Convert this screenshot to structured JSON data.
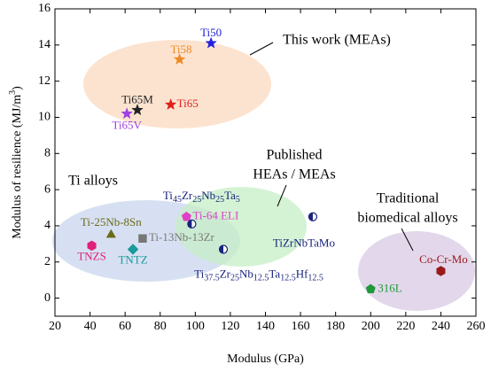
{
  "chart_data": {
    "type": "scatter",
    "x_label": "Modulus (GPa)",
    "y_label": [
      {
        "text": "Modulus of resilience (MJ/m"
      },
      {
        "text": "3",
        "shift": "super"
      },
      {
        "text": ")"
      }
    ],
    "xlim": [
      20,
      260
    ],
    "ylim": [
      -1,
      16
    ],
    "xticks": [
      20,
      40,
      60,
      80,
      100,
      120,
      140,
      160,
      180,
      200,
      220,
      240,
      260
    ],
    "yticks": [
      0,
      2,
      4,
      6,
      8,
      10,
      12,
      14,
      16
    ],
    "points": [
      {
        "label": [
          {
            "text": "Ti50"
          }
        ],
        "x": 109,
        "y": 14.1,
        "marker": "star",
        "color": "#2222dd"
      },
      {
        "label": [
          {
            "text": "Ti58"
          }
        ],
        "x": 91,
        "y": 13.2,
        "marker": "star",
        "color": "#ee8a22"
      },
      {
        "label": [
          {
            "text": "Ti65M"
          }
        ],
        "x": 67,
        "y": 10.4,
        "marker": "star",
        "color": "#222222"
      },
      {
        "label": [
          {
            "text": "Ti65"
          }
        ],
        "x": 86,
        "y": 10.7,
        "marker": "star",
        "color": "#e02020"
      },
      {
        "label": [
          {
            "text": "Ti65V"
          }
        ],
        "x": 61,
        "y": 10.2,
        "marker": "star",
        "color": "#a040e0"
      },
      {
        "label": [
          {
            "text": "Ti-25Nb-8Sn"
          }
        ],
        "x": 52,
        "y": 3.5,
        "marker": "triangle",
        "color": "#6b6b1a"
      },
      {
        "label": [
          {
            "text": "Ti-13Nb-13Zr"
          }
        ],
        "x": 70,
        "y": 3.3,
        "marker": "square",
        "color": "#777777"
      },
      {
        "label": [
          {
            "text": "TNZS"
          }
        ],
        "x": 41,
        "y": 2.9,
        "marker": "hexagon",
        "color": "#e0207a"
      },
      {
        "label": [
          {
            "text": "TNTZ"
          }
        ],
        "x": 64.5,
        "y": 2.7,
        "marker": "diamond",
        "color": "#1a9a9a"
      },
      {
        "label": [
          {
            "text": "Ti-64 ELI"
          }
        ],
        "x": 95,
        "y": 4.5,
        "marker": "pentagon",
        "color": "#e040c8"
      },
      {
        "label": [
          {
            "text": "Ti"
          },
          {
            "text": "45",
            "shift": "sub"
          },
          {
            "text": "Zr"
          },
          {
            "text": "25",
            "shift": "sub"
          },
          {
            "text": "Nb"
          },
          {
            "text": "25",
            "shift": "sub"
          },
          {
            "text": "Ta"
          },
          {
            "text": "5",
            "shift": "sub"
          }
        ],
        "x": 98,
        "y": 4.1,
        "marker": "half-circle",
        "color": "#1a237e"
      },
      {
        "label": [
          {
            "text": "TiZrNbTaMo"
          }
        ],
        "x": 167,
        "y": 4.5,
        "marker": "half-circle",
        "color": "#1a237e"
      },
      {
        "label": [
          {
            "text": "Ti"
          },
          {
            "text": "37.5",
            "shift": "sub"
          },
          {
            "text": "Zr"
          },
          {
            "text": "25",
            "shift": "sub"
          },
          {
            "text": "Nb"
          },
          {
            "text": "12.5",
            "shift": "sub"
          },
          {
            "text": "Ta"
          },
          {
            "text": "12.5",
            "shift": "sub"
          },
          {
            "text": "Hf"
          },
          {
            "text": "12.5",
            "shift": "sub"
          }
        ],
        "x": 116,
        "y": 2.7,
        "marker": "half-circle",
        "color": "#1a237e"
      },
      {
        "label": [
          {
            "text": "316L"
          }
        ],
        "x": 200,
        "y": 0.5,
        "marker": "pentagon",
        "color": "#1f9a3a"
      },
      {
        "label": [
          {
            "text": "Co-Cr-Mo"
          }
        ],
        "x": 240,
        "y": 1.5,
        "marker": "hexagon",
        "color": "#9a1a1a"
      }
    ],
    "annotations": [
      {
        "lines": [
          "This work (MEAs)"
        ]
      },
      {
        "lines": [
          "Ti alloys"
        ]
      },
      {
        "lines": [
          "Published",
          "HEAs / MEAs"
        ]
      },
      {
        "lines": [
          "Traditional",
          "biomedical alloys"
        ]
      }
    ]
  }
}
